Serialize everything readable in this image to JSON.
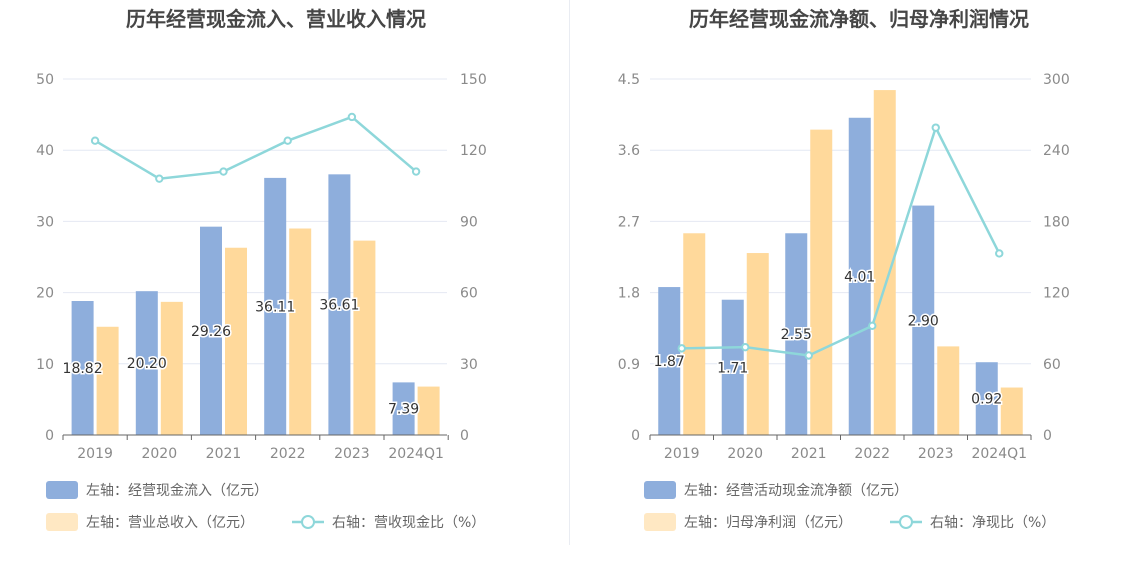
{
  "colors": {
    "primary_bar": "#8eaedc",
    "secondary_bar": "#ffd99b",
    "line": "#8ed7da",
    "grid": "#e4e8f3",
    "axis": "#666666"
  },
  "chart_data": [
    {
      "type": "bar",
      "title": "历年经营现金流入、营业收入情况",
      "categories": [
        "2019",
        "2020",
        "2021",
        "2022",
        "2023",
        "2024Q1"
      ],
      "y_left": {
        "ticks": [
          "0",
          "10",
          "20",
          "30",
          "40",
          "50"
        ],
        "ylim": [
          0,
          50
        ]
      },
      "y_right": {
        "ticks": [
          "0",
          "30",
          "60",
          "90",
          "120",
          "150"
        ],
        "ylim": [
          0,
          150
        ]
      },
      "series": [
        {
          "name": "左轴：经营现金流入（亿元）",
          "kind": "bar",
          "axis": "left",
          "values": [
            18.82,
            20.2,
            29.26,
            36.11,
            36.61,
            7.39
          ],
          "labels": [
            "18.82",
            "20.20",
            "29.26",
            "36.11",
            "36.61",
            "7.39"
          ]
        },
        {
          "name": "左轴：营业总收入（亿元）",
          "kind": "bar",
          "axis": "left",
          "values": [
            15.2,
            18.7,
            26.3,
            29.0,
            27.3,
            6.8
          ]
        },
        {
          "name": "右轴：营收现金比（%）",
          "kind": "line",
          "axis": "right",
          "values": [
            124,
            108,
            111,
            124,
            134,
            111
          ]
        }
      ],
      "grid": true,
      "legend_position": "bottom"
    },
    {
      "type": "bar",
      "title": "历年经营现金流净额、归母净利润情况",
      "categories": [
        "2019",
        "2020",
        "2021",
        "2022",
        "2023",
        "2024Q1"
      ],
      "y_left": {
        "ticks": [
          "0",
          "0.9",
          "1.8",
          "2.7",
          "3.6",
          "4.5"
        ],
        "ylim": [
          0,
          4.5
        ]
      },
      "y_right": {
        "ticks": [
          "0",
          "60",
          "120",
          "180",
          "240",
          "300"
        ],
        "ylim": [
          0,
          300
        ]
      },
      "series": [
        {
          "name": "左轴：经营活动现金流净额（亿元）",
          "kind": "bar",
          "axis": "left",
          "values": [
            1.87,
            1.71,
            2.55,
            4.01,
            2.9,
            0.92
          ],
          "labels": [
            "1.87",
            "1.71",
            "2.55",
            "4.01",
            "2.90",
            "0.92"
          ]
        },
        {
          "name": "左轴：归母净利润（亿元）",
          "kind": "bar",
          "axis": "left",
          "values": [
            2.55,
            2.3,
            3.86,
            4.36,
            1.12,
            0.6
          ]
        },
        {
          "name": "右轴：净现比（%）",
          "kind": "line",
          "axis": "right",
          "values": [
            73,
            74,
            67,
            92,
            259,
            153
          ]
        }
      ],
      "grid": true,
      "legend_position": "bottom"
    }
  ]
}
